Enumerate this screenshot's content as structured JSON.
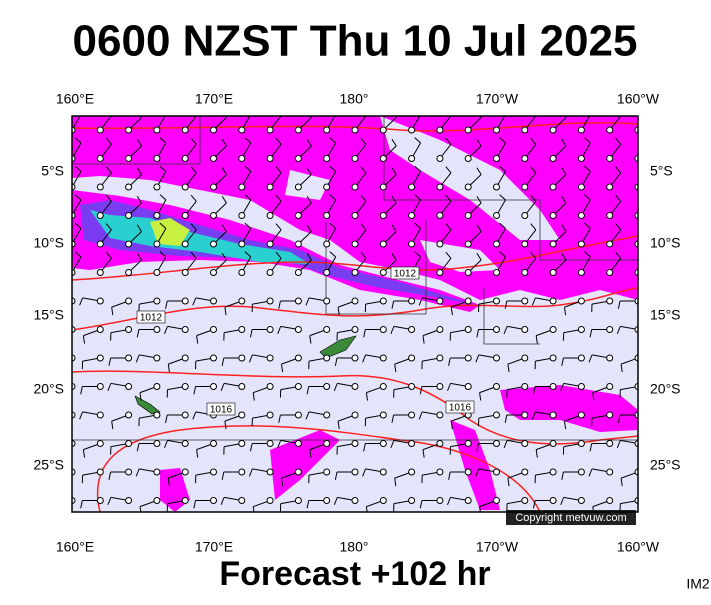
{
  "header": {
    "title": "0600 NZST Thu 10 Jul 2025"
  },
  "map": {
    "top_labels": [
      "160°E",
      "170°E",
      "180°",
      "170°W",
      "160°W"
    ],
    "bottom_labels": [
      "160°E",
      "170°E",
      "180°",
      "170°W",
      "160°W"
    ],
    "left_labels": [
      "5°S",
      "10°S",
      "15°S",
      "20°S",
      "25°S"
    ],
    "right_labels": [
      "5°S",
      "10°S",
      "15°S",
      "20°S",
      "25°S"
    ],
    "isobar_labels": [
      "1012",
      "1012",
      "1016",
      "1016"
    ],
    "credit": "Copyright metvuw.com"
  },
  "footer": {
    "forecast": "Forecast +102 hr",
    "image_id": "IM2"
  }
}
